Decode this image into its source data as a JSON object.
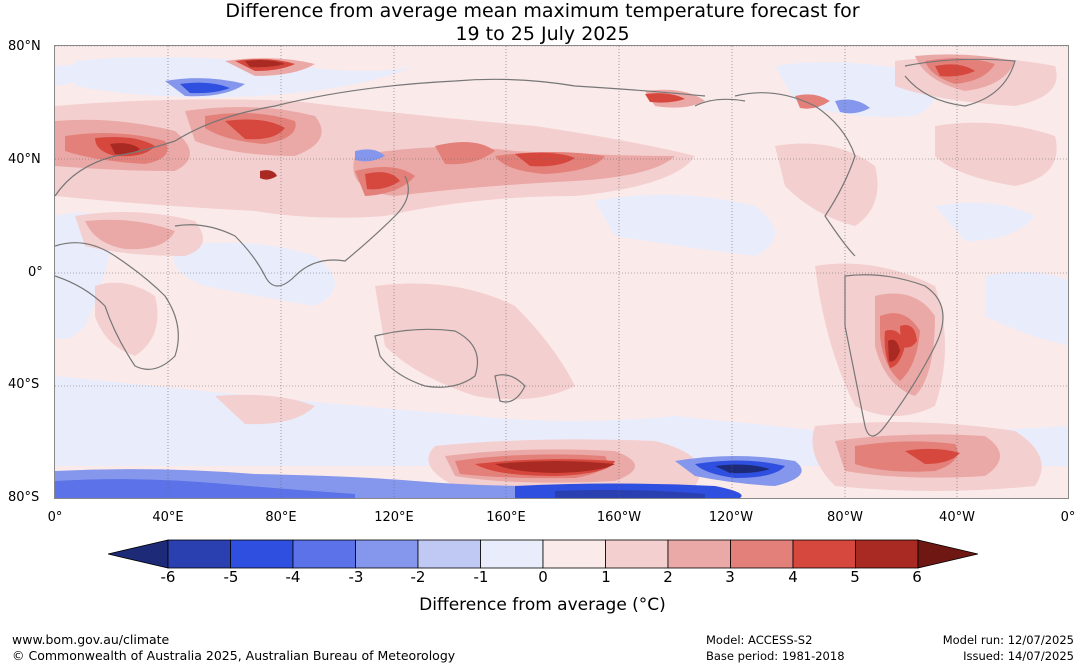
{
  "title": {
    "line1": "Difference from average mean maximum temperature forecast for",
    "line2": "19 to 25 July 2025"
  },
  "axes": {
    "lat_labels": [
      "80°N",
      "40°N",
      "0°",
      "40°S",
      "80°S"
    ],
    "lon_labels": [
      "0°",
      "40°E",
      "80°E",
      "120°E",
      "160°E",
      "160°W",
      "120°W",
      "80°W",
      "40°W",
      "0°"
    ]
  },
  "colorbar": {
    "ticks": [
      "-6",
      "-5",
      "-4",
      "-3",
      "-2",
      "-1",
      "0",
      "1",
      "2",
      "3",
      "4",
      "5",
      "6"
    ],
    "label": "Difference from average (°C)",
    "colors": {
      "below_min": "#1c2a78",
      "bins": [
        "#2a3fb0",
        "#2f4fe0",
        "#5b72e8",
        "#8597ec",
        "#c0c9f3",
        "#e9ecfb",
        "#fbeaea",
        "#f4cfcf",
        "#eaa9a6",
        "#e4807a",
        "#d6473d",
        "#a82a22"
      ],
      "above_max": "#6e1713"
    }
  },
  "footer": {
    "website": "www.bom.gov.au/climate",
    "copyright": "© Commonwealth of Australia 2025, Australian Bureau of Meteorology",
    "model": "Model: ACCESS-S2",
    "base_period": "Base period: 1981-2018",
    "model_run": "Model run: 12/07/2025",
    "issued": "Issued: 14/07/2025"
  }
}
